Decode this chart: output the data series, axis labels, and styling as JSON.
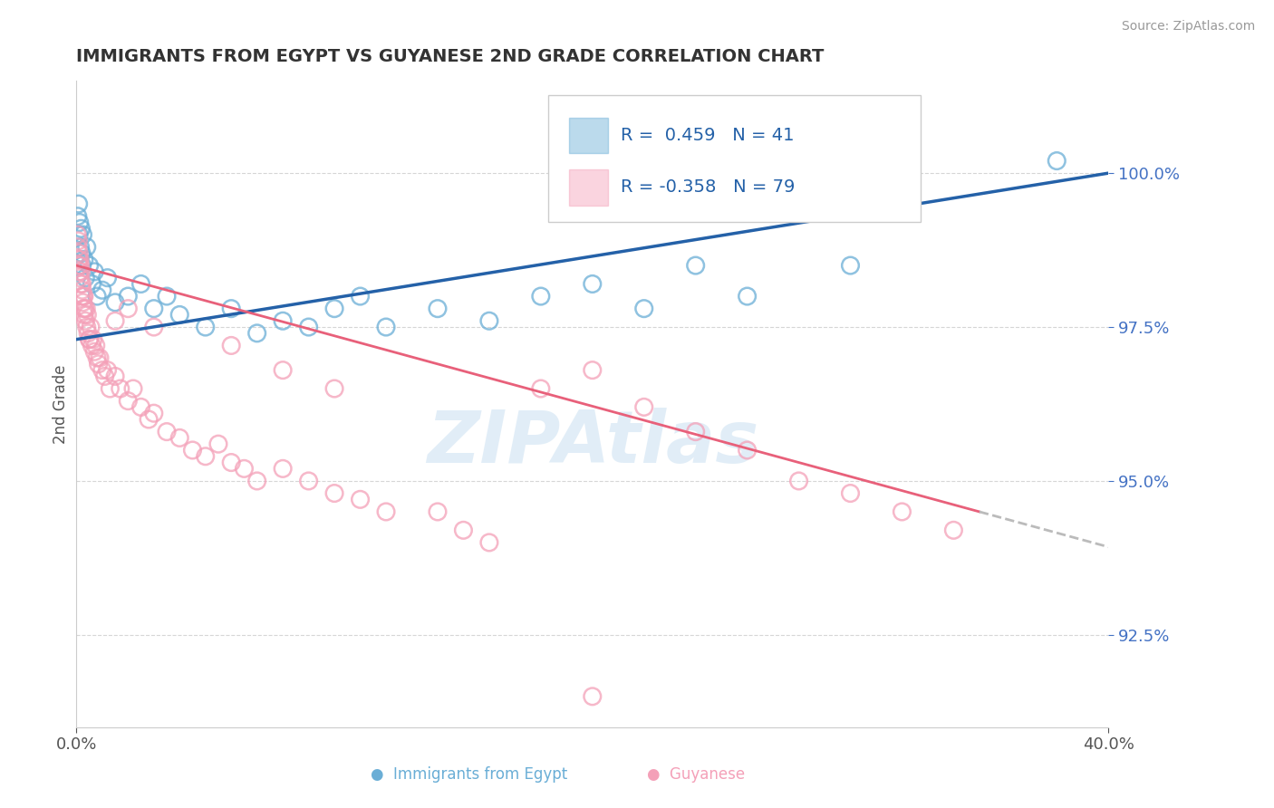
{
  "title": "IMMIGRANTS FROM EGYPT VS GUYANESE 2ND GRADE CORRELATION CHART",
  "source": "Source: ZipAtlas.com",
  "ylabel": "2nd Grade",
  "x_min": 0.0,
  "x_max": 40.0,
  "y_min": 91.0,
  "y_max": 101.5,
  "y_ticks": [
    92.5,
    95.0,
    97.5,
    100.0
  ],
  "x_tick_labels": [
    "0.0%",
    "40.0%"
  ],
  "y_tick_labels": [
    "92.5%",
    "95.0%",
    "97.5%",
    "100.0%"
  ],
  "blue_color": "#6aaed6",
  "pink_color": "#f4a0b8",
  "blue_line_color": "#2461a8",
  "pink_line_color": "#e8607a",
  "dashed_line_color": "#bbbbbb",
  "watermark": "ZIPAtlas",
  "legend_blue_text_color": "#2461a8",
  "legend_pink_text_color": "#2461a8",
  "legend_r1": "R =  0.459",
  "legend_n1": "N = 41",
  "legend_r2": "R = -0.358",
  "legend_n2": "N = 79",
  "blue_scatter_x": [
    0.05,
    0.08,
    0.1,
    0.12,
    0.15,
    0.18,
    0.2,
    0.22,
    0.25,
    0.3,
    0.35,
    0.4,
    0.5,
    0.6,
    0.7,
    0.8,
    1.0,
    1.2,
    1.5,
    2.0,
    2.5,
    3.0,
    3.5,
    4.0,
    5.0,
    6.0,
    7.0,
    8.0,
    9.0,
    10.0,
    11.0,
    12.0,
    14.0,
    16.0,
    18.0,
    20.0,
    22.0,
    24.0,
    26.0,
    30.0,
    38.0
  ],
  "blue_scatter_y": [
    99.3,
    99.5,
    99.0,
    99.2,
    98.8,
    99.1,
    98.7,
    98.5,
    99.0,
    98.6,
    98.3,
    98.8,
    98.5,
    98.2,
    98.4,
    98.0,
    98.1,
    98.3,
    97.9,
    98.0,
    98.2,
    97.8,
    98.0,
    97.7,
    97.5,
    97.8,
    97.4,
    97.6,
    97.5,
    97.8,
    98.0,
    97.5,
    97.8,
    97.6,
    98.0,
    98.2,
    97.8,
    98.5,
    98.0,
    98.5,
    100.2
  ],
  "pink_scatter_x": [
    0.03,
    0.05,
    0.07,
    0.08,
    0.1,
    0.1,
    0.12,
    0.13,
    0.14,
    0.15,
    0.17,
    0.18,
    0.2,
    0.22,
    0.23,
    0.25,
    0.27,
    0.28,
    0.3,
    0.3,
    0.32,
    0.35,
    0.38,
    0.4,
    0.42,
    0.45,
    0.5,
    0.55,
    0.6,
    0.65,
    0.7,
    0.75,
    0.8,
    0.85,
    0.9,
    1.0,
    1.1,
    1.2,
    1.3,
    1.5,
    1.7,
    2.0,
    2.2,
    2.5,
    2.8,
    3.0,
    3.5,
    4.0,
    4.5,
    5.0,
    5.5,
    6.0,
    6.5,
    7.0,
    8.0,
    9.0,
    10.0,
    11.0,
    12.0,
    14.0,
    15.0,
    16.0,
    18.0,
    20.0,
    20.0,
    22.0,
    24.0,
    26.0,
    28.0,
    30.0,
    32.0,
    34.0,
    6.0,
    8.0,
    10.0,
    3.0,
    2.0,
    1.5,
    0.5
  ],
  "pink_scatter_y": [
    99.0,
    98.8,
    98.9,
    98.6,
    98.7,
    98.5,
    98.4,
    98.6,
    98.3,
    98.5,
    98.2,
    98.4,
    98.0,
    98.2,
    98.1,
    97.9,
    98.0,
    97.8,
    98.0,
    97.7,
    97.8,
    97.6,
    97.8,
    97.5,
    97.7,
    97.4,
    97.3,
    97.5,
    97.2,
    97.3,
    97.1,
    97.2,
    97.0,
    96.9,
    97.0,
    96.8,
    96.7,
    96.8,
    96.5,
    96.7,
    96.5,
    96.3,
    96.5,
    96.2,
    96.0,
    96.1,
    95.8,
    95.7,
    95.5,
    95.4,
    95.6,
    95.3,
    95.2,
    95.0,
    95.2,
    95.0,
    94.8,
    94.7,
    94.5,
    94.5,
    94.2,
    94.0,
    96.5,
    96.8,
    91.5,
    96.2,
    95.8,
    95.5,
    95.0,
    94.8,
    94.5,
    94.2,
    97.2,
    96.8,
    96.5,
    97.5,
    97.8,
    97.6,
    97.3
  ],
  "pink_outlier_x": 20.0,
  "pink_outlier_y": 91.5,
  "pink_lowoutlier_x": 20.0,
  "pink_lowoutlier_y": 91.5,
  "bottom_legend_label_blue": "Immigrants from Egypt",
  "bottom_legend_label_pink": "Guyanese"
}
